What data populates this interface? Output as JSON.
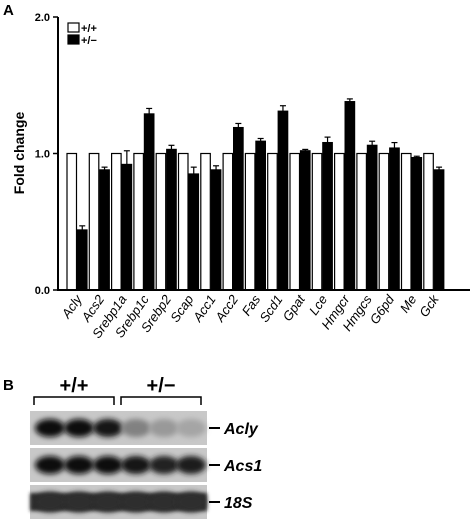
{
  "panels": {
    "a": "A",
    "b": "B"
  },
  "chart_data": {
    "type": "bar",
    "title": "",
    "xlabel": "",
    "ylabel": "Fold change",
    "ylim": [
      0,
      2.0
    ],
    "yticks": [
      "0.0",
      "1.0",
      "2.0"
    ],
    "ytick_values": [
      0,
      1,
      2
    ],
    "grid": false,
    "legend_position": "top-left",
    "categories": [
      "Acly",
      "Acs2",
      "Srebp1a",
      "Srebp1c",
      "Srebp2",
      "Scap",
      "Acc1",
      "Acc2",
      "Fas",
      "Scd1",
      "Gpat",
      "Lce",
      "Hmgcr",
      "Hmgcs",
      "G6pd",
      "Me",
      "Gck"
    ],
    "series": [
      {
        "name": "+/+",
        "color": "#ffffff",
        "values": [
          1,
          1,
          1,
          1,
          1,
          1,
          1,
          1,
          1,
          1,
          1,
          1,
          1,
          1,
          1,
          1,
          1
        ],
        "errors": [
          0,
          0,
          0,
          0,
          0,
          0,
          0,
          0,
          0,
          0,
          0,
          0,
          0,
          0,
          0,
          0,
          0
        ]
      },
      {
        "name": "+/−",
        "color": "#000000",
        "values": [
          0.44,
          0.88,
          0.92,
          1.29,
          1.03,
          0.85,
          0.88,
          1.19,
          1.09,
          1.31,
          1.02,
          1.08,
          1.38,
          1.06,
          1.04,
          0.97,
          0.88
        ],
        "errors": [
          0.03,
          0.02,
          0.1,
          0.04,
          0.03,
          0.05,
          0.03,
          0.03,
          0.02,
          0.04,
          0.01,
          0.04,
          0.02,
          0.03,
          0.04,
          0.01,
          0.02
        ]
      }
    ]
  },
  "blot": {
    "groups": [
      "+/+",
      "+/−"
    ],
    "rows": [
      {
        "label": "Acly",
        "intensities": [
          0.95,
          0.95,
          0.92,
          0.45,
          0.35,
          0.3
        ]
      },
      {
        "label": "Acs1",
        "intensities": [
          0.95,
          0.95,
          0.95,
          0.9,
          0.85,
          0.88
        ]
      },
      {
        "label": "18S",
        "intensities": [
          0.8,
          0.8,
          0.8,
          0.8,
          0.8,
          0.8
        ]
      }
    ]
  }
}
